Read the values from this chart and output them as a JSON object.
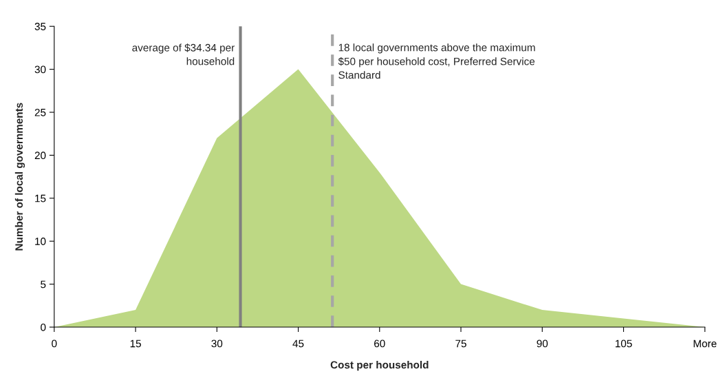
{
  "chart_data": {
    "type": "area",
    "xlabel": "Cost per household",
    "ylabel": "Number of local governments",
    "x": [
      0,
      15,
      30,
      45,
      60,
      75,
      90,
      105,
      120
    ],
    "series": [
      {
        "color": "#bdd884",
        "values": [
          0,
          2,
          22,
          30,
          18,
          5,
          2,
          1,
          0
        ]
      }
    ],
    "xlim": [
      0,
      120
    ],
    "xticks": [
      0,
      15,
      30,
      45,
      60,
      75,
      90,
      105,
      {
        "value": 120,
        "label": "More"
      }
    ],
    "ylim": [
      0,
      35
    ],
    "yticks": [
      0,
      5,
      10,
      15,
      20,
      25,
      30,
      35
    ],
    "ref_lines": [
      {
        "axis": "x",
        "value": 34.34,
        "label": "average of $34.34 per\nhousehold",
        "color": "#808080",
        "line_style": "solid"
      },
      {
        "axis": "x",
        "value": 51.3,
        "label": "18 local governments above the maximum\n$50 per household cost, Preferred Service\nStandard",
        "color": "#a6a6a6",
        "line_style": "dashed"
      }
    ],
    "grid": false,
    "legend": false
  }
}
